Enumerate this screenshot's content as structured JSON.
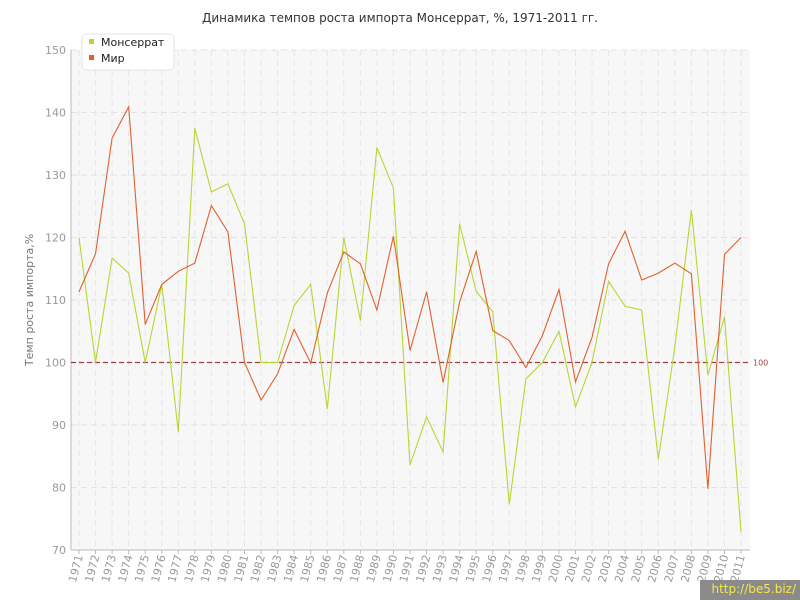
{
  "chart_data": {
    "type": "line",
    "title": "Динамика темпов роста импорта Монсеррат, %, 1971-2011 гг.",
    "ylabel": "Темп роста импорта,%",
    "xlabel": "",
    "ylim": [
      70,
      150
    ],
    "yticks": [
      70,
      80,
      90,
      100,
      110,
      120,
      130,
      140,
      150
    ],
    "categories": [
      "1971",
      "1972",
      "1973",
      "1974",
      "1975",
      "1976",
      "1977",
      "1978",
      "1979",
      "1980",
      "1981",
      "1982",
      "1983",
      "1984",
      "1985",
      "1986",
      "1987",
      "1988",
      "1989",
      "1990",
      "1991",
      "1992",
      "1993",
      "1994",
      "1995",
      "1996",
      "1997",
      "1998",
      "1999",
      "2000",
      "2001",
      "2002",
      "2003",
      "2004",
      "2005",
      "2006",
      "2007",
      "2008",
      "2009",
      "2010",
      "2011"
    ],
    "series": [
      {
        "name": "Монсеррат",
        "color": "#b7d633",
        "values": [
          120.0,
          100.0,
          116.7,
          114.3,
          100.0,
          112.5,
          88.9,
          137.5,
          127.3,
          128.6,
          122.2,
          100.0,
          100.0,
          109.1,
          112.5,
          92.6,
          120.0,
          106.7,
          134.4,
          127.9,
          83.6,
          91.3,
          85.7,
          122.2,
          111.4,
          108.1,
          77.3,
          97.4,
          100.0,
          105.0,
          92.9,
          100.0,
          113.0,
          109.0,
          108.4,
          84.5,
          102.5,
          124.4,
          98.0,
          107.3,
          72.9
        ]
      },
      {
        "name": "Мир",
        "color": "#e06030",
        "values": [
          111.3,
          117.4,
          135.9,
          140.9,
          106.1,
          112.5,
          114.6,
          115.9,
          125.1,
          120.9,
          100.0,
          94.0,
          98.2,
          105.3,
          99.9,
          111.1,
          117.7,
          115.8,
          108.4,
          120.2,
          101.9,
          111.3,
          96.8,
          109.7,
          117.8,
          105.1,
          103.5,
          99.2,
          104.3,
          111.7,
          96.9,
          104.0,
          115.8,
          121.0,
          113.2,
          114.3,
          115.9,
          114.2,
          79.8,
          117.3,
          120.0
        ]
      }
    ],
    "reference_line": {
      "value": 100,
      "label": "100",
      "color": "#a04040"
    },
    "grid": true,
    "legend": "top-left"
  },
  "watermark": "http://be5.biz/"
}
